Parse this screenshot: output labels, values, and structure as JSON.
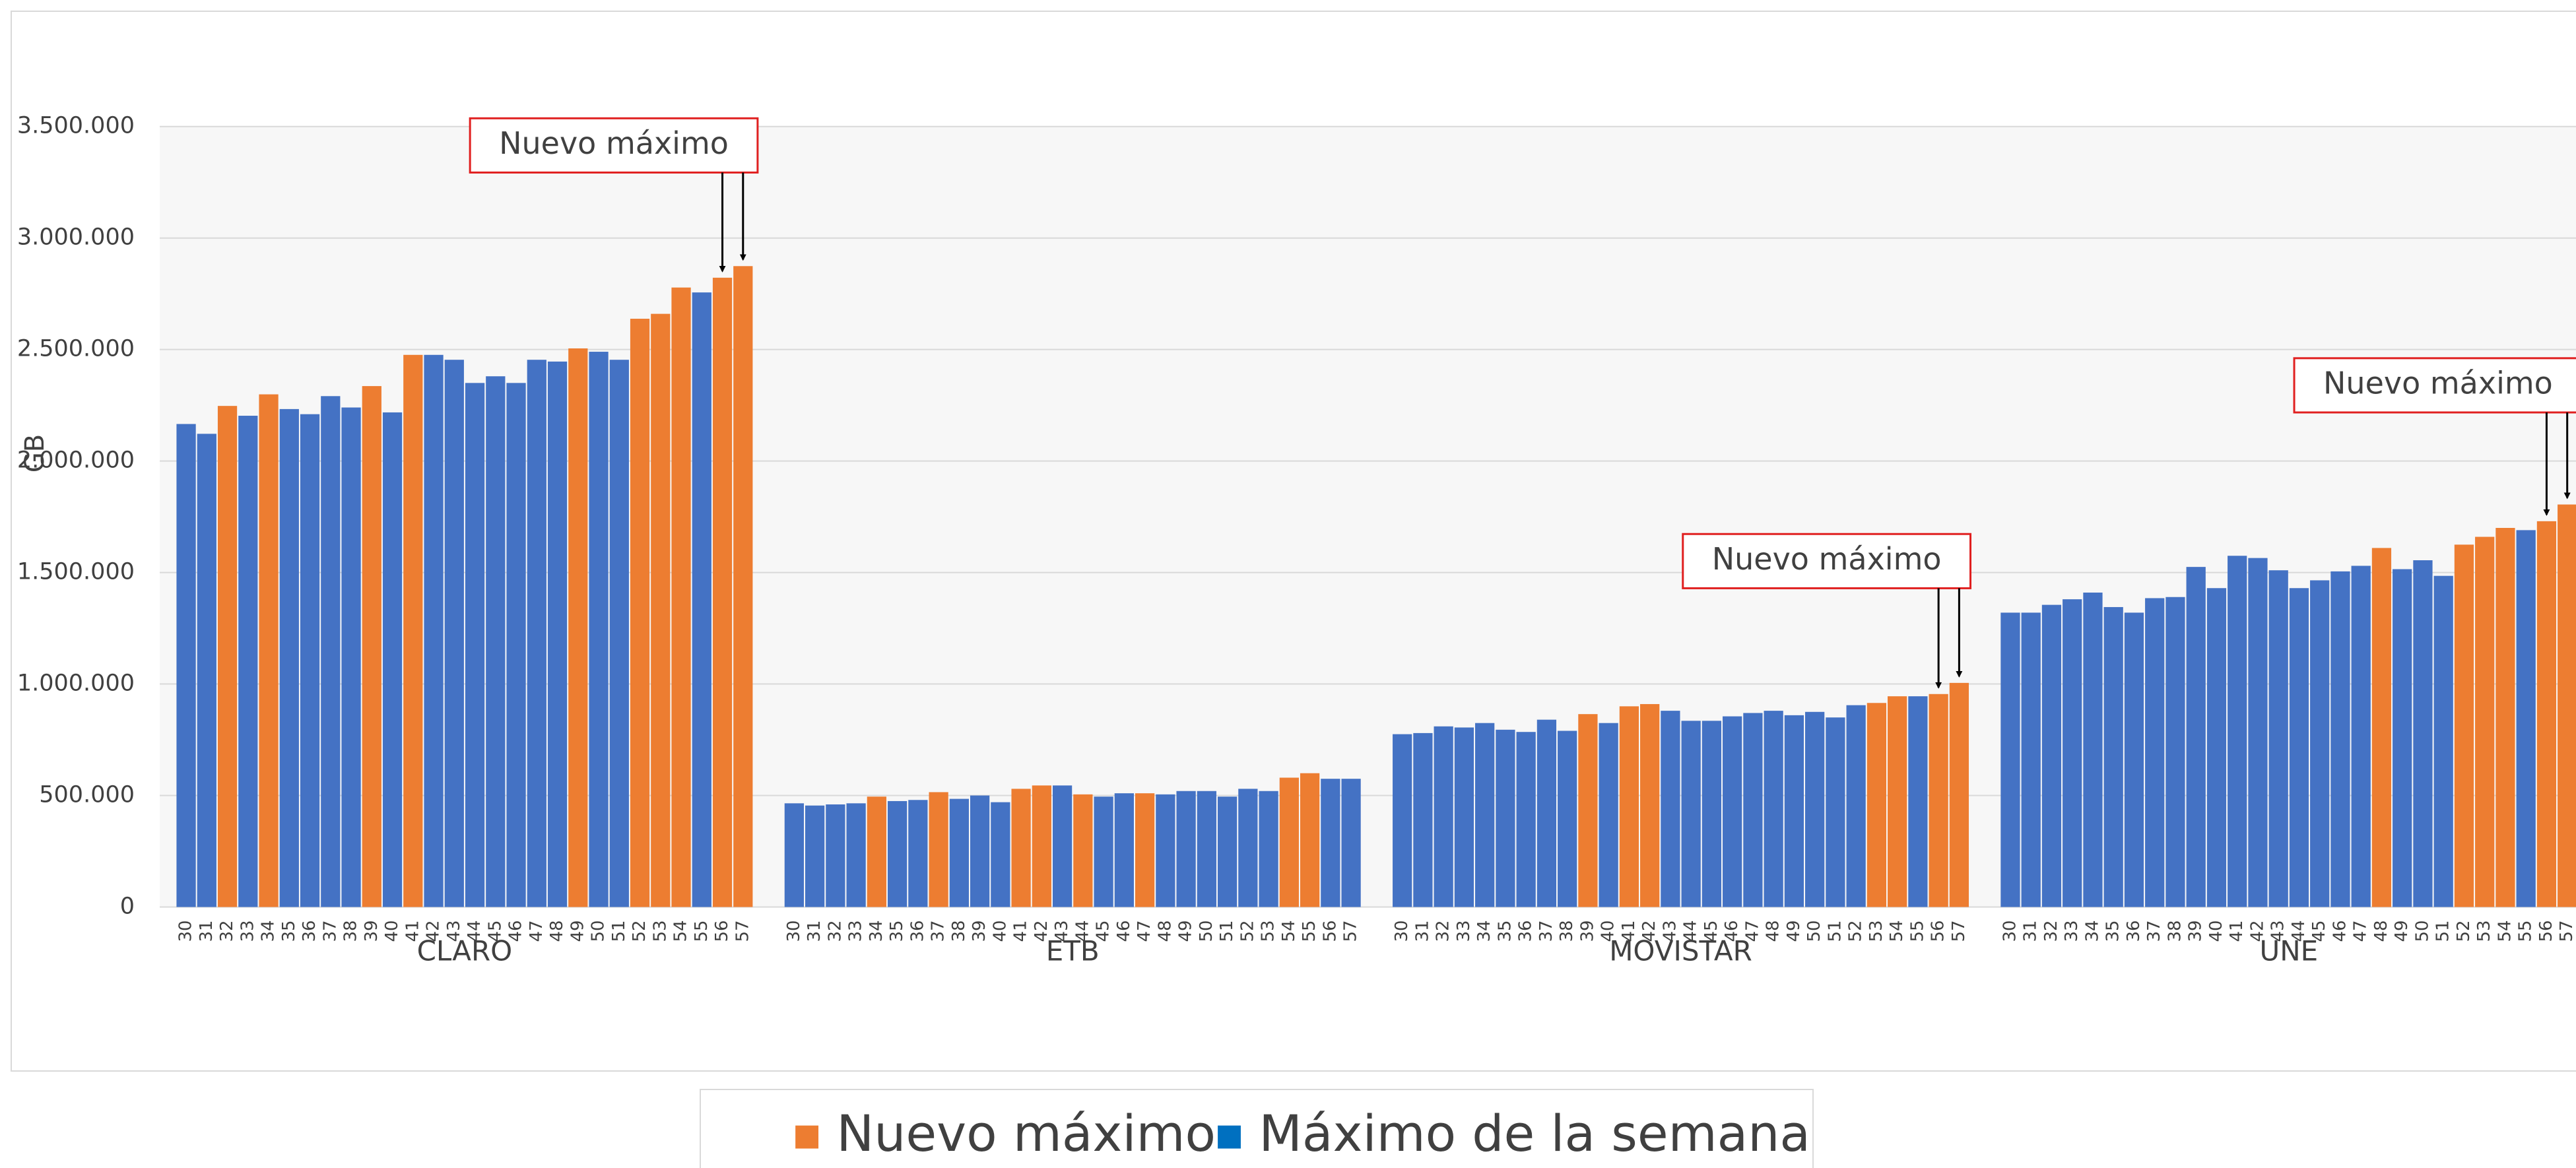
{
  "chart_data": {
    "type": "bar",
    "y_label": "GB",
    "groups": [
      "CLARO",
      "ETB",
      "MOVISTAR",
      "UNE"
    ],
    "categories": [
      "30",
      "31",
      "32",
      "33",
      "34",
      "35",
      "36",
      "37",
      "38",
      "39",
      "40",
      "41",
      "42",
      "43",
      "44",
      "45",
      "46",
      "47",
      "48",
      "49",
      "50",
      "51",
      "52",
      "53",
      "54",
      "55",
      "56",
      "57",
      "30",
      "31",
      "32",
      "33",
      "34",
      "35",
      "36",
      "37",
      "38",
      "39",
      "40",
      "41",
      "42",
      "43",
      "44",
      "45",
      "46",
      "47",
      "48",
      "49",
      "50",
      "51",
      "52",
      "53",
      "54",
      "55",
      "56",
      "57",
      "30",
      "31",
      "32",
      "33",
      "34",
      "35",
      "36",
      "37",
      "38",
      "39",
      "40",
      "41",
      "42",
      "43",
      "44",
      "45",
      "46",
      "47",
      "48",
      "49",
      "50",
      "51",
      "52",
      "53",
      "54",
      "55",
      "56",
      "57",
      "30",
      "31",
      "32",
      "33",
      "34",
      "35",
      "36",
      "37",
      "38",
      "39",
      "40",
      "41",
      "42",
      "43",
      "44",
      "45",
      "46",
      "47",
      "48",
      "49",
      "50",
      "51",
      "52",
      "53",
      "54",
      "55",
      "56",
      "57"
    ],
    "series": [
      {
        "name": "Nuevo máximo",
        "color": "#ed7d31",
        "values": [
          null,
          null,
          2247000,
          null,
          2299000,
          null,
          null,
          null,
          null,
          2336000,
          null,
          2476000,
          null,
          null,
          null,
          null,
          null,
          null,
          null,
          2505000,
          null,
          null,
          2638000,
          2660000,
          2778000,
          null,
          2822000,
          2874000,
          null,
          null,
          null,
          null,
          495000,
          null,
          null,
          515000,
          null,
          null,
          null,
          530000,
          545000,
          null,
          505000,
          null,
          null,
          510000,
          null,
          null,
          null,
          null,
          null,
          null,
          580000,
          600000,
          null,
          null,
          null,
          null,
          null,
          null,
          null,
          null,
          null,
          null,
          null,
          865000,
          null,
          900000,
          910000,
          null,
          null,
          null,
          null,
          null,
          null,
          null,
          null,
          null,
          null,
          915000,
          945000,
          null,
          955000,
          1005000,
          null,
          null,
          null,
          null,
          null,
          null,
          null,
          null,
          null,
          null,
          null,
          null,
          null,
          null,
          null,
          null,
          null,
          null,
          1610000,
          null,
          null,
          null,
          1625000,
          1660000,
          1700000,
          null,
          1730000,
          1805000
        ]
      },
      {
        "name": "Máximo de la semana",
        "color": "#4472c4",
        "legend_color": "#0070c0",
        "values": [
          2166000,
          2122000,
          null,
          2203000,
          null,
          2233000,
          2210000,
          2291000,
          2240000,
          null,
          2218000,
          null,
          2476000,
          2454000,
          2350000,
          2380000,
          2350000,
          2454000,
          2446000,
          null,
          2490000,
          2454000,
          null,
          null,
          null,
          2756000,
          null,
          null,
          465000,
          455000,
          460000,
          465000,
          null,
          475000,
          480000,
          null,
          485000,
          500000,
          470000,
          null,
          null,
          545000,
          null,
          495000,
          510000,
          null,
          505000,
          520000,
          520000,
          495000,
          530000,
          520000,
          null,
          null,
          575000,
          575000,
          775000,
          780000,
          810000,
          805000,
          825000,
          795000,
          785000,
          840000,
          790000,
          null,
          825000,
          null,
          null,
          880000,
          835000,
          835000,
          855000,
          870000,
          880000,
          860000,
          875000,
          850000,
          905000,
          null,
          null,
          945000,
          null,
          null,
          1320000,
          1320000,
          1355000,
          1380000,
          1410000,
          1345000,
          1320000,
          1385000,
          1390000,
          1525000,
          1430000,
          1575000,
          1565000,
          1510000,
          1430000,
          1465000,
          1505000,
          1530000,
          null,
          1515000,
          1555000,
          1485000,
          null,
          null,
          null,
          1690000,
          null,
          null
        ]
      }
    ],
    "ylim": [
      0,
      3500000
    ],
    "yticks": [
      0,
      {
        "value": 500000,
        "label": "500.000"
      },
      {
        "value": 1000000,
        "label": "1.000.000"
      },
      {
        "value": 1500000,
        "label": "1.500.000"
      },
      {
        "value": 2000000,
        "label": "2.000.000"
      },
      {
        "value": 2500000,
        "label": "2.500.000"
      },
      {
        "value": 3000000,
        "label": "3.000.000"
      },
      {
        "value": 3500000,
        "label": "3.500.000"
      }
    ],
    "grid": true,
    "annotations": [
      {
        "text": "Nuevo máximo"
      },
      {
        "text": "Nuevo máximo"
      },
      {
        "text": "Nuevo máximo"
      }
    ]
  }
}
